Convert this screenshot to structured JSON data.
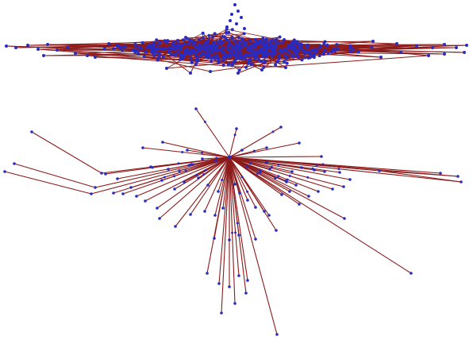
{
  "colors": {
    "edge": "#8b1a1a",
    "node": "#2b2bbf",
    "background": "#ffffff"
  },
  "graphs": [
    {
      "id": "dense-network",
      "kind": "dense hairball graph with many nodes and edges"
    },
    {
      "id": "star-network",
      "kind": "star graph, single hub with radiating edges"
    }
  ]
}
